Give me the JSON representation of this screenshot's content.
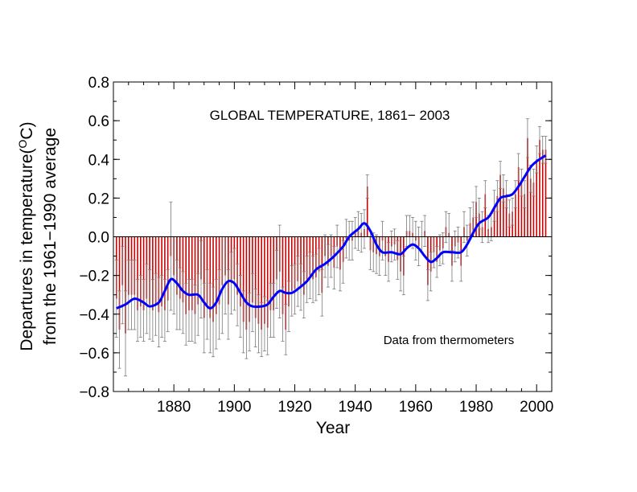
{
  "chart_data": {
    "type": "bar",
    "title": "GLOBAL TEMPERATURE, 1861− 2003",
    "xlabel": "Year",
    "ylabel_line1": "Departures in temperature(",
    "ylabel_sup": "O",
    "ylabel_unit": "C)",
    "ylabel_line2": "from the 1961−1990 average",
    "annotation": "Data from thermometers",
    "xlim": [
      1860,
      2005
    ],
    "ylim": [
      -0.8,
      0.8
    ],
    "x_ticks": [
      1880,
      1900,
      1920,
      1940,
      1960,
      1980,
      2000
    ],
    "y_ticks": [
      -0.8,
      -0.6,
      -0.4,
      -0.2,
      0.0,
      0.2,
      0.4,
      0.6,
      0.8
    ],
    "y_tick_labels": [
      "−0.8",
      "−0.6",
      "−0.4",
      "−0.2",
      "0.0",
      "0.2",
      "0.4",
      "0.6",
      "0.8"
    ],
    "bar_color": "#cc0000",
    "errorbar_color": "#7a7a7a",
    "smooth_color": "#0000ff",
    "grid": false,
    "start_year": 1861,
    "values": [
      -0.32,
      -0.48,
      -0.25,
      -0.5,
      -0.3,
      -0.3,
      -0.3,
      -0.38,
      -0.36,
      -0.38,
      -0.32,
      -0.35,
      -0.38,
      -0.35,
      -0.39,
      -0.36,
      -0.38,
      -0.33,
      -0.1,
      -0.2,
      -0.3,
      -0.32,
      -0.34,
      -0.4,
      -0.38,
      -0.38,
      -0.4,
      -0.35,
      -0.22,
      -0.42,
      -0.35,
      -0.42,
      -0.44,
      -0.4,
      -0.35,
      -0.25,
      -0.2,
      -0.35,
      -0.24,
      -0.22,
      -0.3,
      -0.36,
      -0.44,
      -0.48,
      -0.44,
      -0.34,
      -0.42,
      -0.45,
      -0.48,
      -0.45,
      -0.47,
      -0.38,
      -0.38,
      -0.22,
      -0.18,
      -0.4,
      -0.48,
      -0.36,
      -0.28,
      -0.27,
      -0.23,
      -0.26,
      -0.3,
      -0.22,
      -0.2,
      -0.22,
      -0.21,
      -0.18,
      -0.29,
      -0.1,
      -0.15,
      -0.1,
      -0.16,
      -0.05,
      -0.17,
      -0.13,
      -0.01,
      -0.02,
      -0.02,
      0.02,
      0.03,
      0.02,
      0.04,
      0.26,
      -0.07,
      -0.08,
      -0.09,
      -0.1,
      -0.02,
      -0.1,
      -0.13,
      -0.05,
      -0.04,
      -0.12,
      -0.18,
      -0.2,
      0.03,
      0.03,
      0.02,
      -0.02,
      -0.05,
      0.0,
      0.03,
      -0.25,
      -0.18,
      -0.08,
      -0.13,
      -0.07,
      -0.06,
      0.05,
      0.02,
      -0.15,
      -0.05,
      -0.03,
      -0.15,
      0.05,
      -0.02,
      0.07,
      0.1,
      0.18,
      0.12,
      0.05,
      0.22,
      0.04,
      0.05,
      0.16,
      0.21,
      0.32,
      0.25,
      0.22,
      0.12,
      0.13,
      0.22,
      0.36,
      0.28,
      0.22,
      0.51,
      0.3,
      0.28,
      0.4,
      0.5,
      0.45,
      0.45
    ],
    "errors": [
      0.2,
      0.2,
      0.2,
      0.22,
      0.18,
      0.18,
      0.18,
      0.16,
      0.16,
      0.16,
      0.18,
      0.18,
      0.16,
      0.16,
      0.18,
      0.16,
      0.16,
      0.16,
      0.28,
      0.2,
      0.18,
      0.16,
      0.16,
      0.16,
      0.16,
      0.16,
      0.15,
      0.16,
      0.2,
      0.18,
      0.18,
      0.18,
      0.18,
      0.18,
      0.18,
      0.25,
      0.2,
      0.18,
      0.16,
      0.16,
      0.16,
      0.16,
      0.16,
      0.15,
      0.15,
      0.15,
      0.15,
      0.15,
      0.14,
      0.14,
      0.14,
      0.14,
      0.14,
      0.15,
      0.24,
      0.14,
      0.13,
      0.13,
      0.13,
      0.13,
      0.13,
      0.12,
      0.12,
      0.12,
      0.12,
      0.12,
      0.12,
      0.12,
      0.12,
      0.11,
      0.11,
      0.11,
      0.11,
      0.11,
      0.11,
      0.11,
      0.1,
      0.1,
      0.1,
      0.08,
      0.1,
      0.1,
      0.1,
      0.06,
      0.1,
      0.1,
      0.1,
      0.1,
      0.1,
      0.1,
      0.1,
      0.08,
      0.08,
      0.1,
      0.1,
      0.1,
      0.08,
      0.08,
      0.08,
      0.1,
      0.1,
      0.08,
      0.08,
      0.08,
      0.1,
      0.08,
      0.08,
      0.08,
      0.08,
      0.08,
      0.1,
      0.08,
      0.08,
      0.08,
      0.08,
      0.08,
      0.08,
      0.08,
      0.08,
      0.08,
      0.08,
      0.08,
      0.07,
      0.07,
      0.07,
      0.08,
      0.08,
      0.07,
      0.07,
      0.07,
      0.07,
      0.07,
      0.07,
      0.07,
      0.07,
      0.07,
      0.1,
      0.07,
      0.07,
      0.07,
      0.07,
      0.07,
      0.07
    ],
    "smooth": [
      [
        1861,
        -0.37
      ],
      [
        1864,
        -0.35
      ],
      [
        1867,
        -0.32
      ],
      [
        1870,
        -0.34
      ],
      [
        1872,
        -0.36
      ],
      [
        1875,
        -0.34
      ],
      [
        1877,
        -0.28
      ],
      [
        1879,
        -0.22
      ],
      [
        1881,
        -0.24
      ],
      [
        1883,
        -0.28
      ],
      [
        1885,
        -0.3
      ],
      [
        1888,
        -0.3
      ],
      [
        1890,
        -0.34
      ],
      [
        1892,
        -0.37
      ],
      [
        1894,
        -0.34
      ],
      [
        1896,
        -0.27
      ],
      [
        1898,
        -0.23
      ],
      [
        1900,
        -0.24
      ],
      [
        1902,
        -0.29
      ],
      [
        1904,
        -0.34
      ],
      [
        1906,
        -0.36
      ],
      [
        1909,
        -0.36
      ],
      [
        1911,
        -0.35
      ],
      [
        1913,
        -0.31
      ],
      [
        1915,
        -0.28
      ],
      [
        1917,
        -0.29
      ],
      [
        1919,
        -0.29
      ],
      [
        1921,
        -0.27
      ],
      [
        1924,
        -0.23
      ],
      [
        1927,
        -0.17
      ],
      [
        1930,
        -0.14
      ],
      [
        1933,
        -0.1
      ],
      [
        1936,
        -0.05
      ],
      [
        1938,
        0.0
      ],
      [
        1941,
        0.04
      ],
      [
        1943,
        0.07
      ],
      [
        1945,
        0.03
      ],
      [
        1947,
        -0.04
      ],
      [
        1949,
        -0.08
      ],
      [
        1952,
        -0.08
      ],
      [
        1955,
        -0.09
      ],
      [
        1957,
        -0.06
      ],
      [
        1959,
        -0.04
      ],
      [
        1961,
        -0.06
      ],
      [
        1963,
        -0.1
      ],
      [
        1965,
        -0.13
      ],
      [
        1967,
        -0.11
      ],
      [
        1969,
        -0.08
      ],
      [
        1972,
        -0.08
      ],
      [
        1975,
        -0.08
      ],
      [
        1977,
        -0.04
      ],
      [
        1979,
        0.02
      ],
      [
        1981,
        0.07
      ],
      [
        1984,
        0.1
      ],
      [
        1986,
        0.15
      ],
      [
        1988,
        0.2
      ],
      [
        1990,
        0.21
      ],
      [
        1992,
        0.22
      ],
      [
        1994,
        0.26
      ],
      [
        1996,
        0.31
      ],
      [
        1998,
        0.36
      ],
      [
        2000,
        0.39
      ],
      [
        2003,
        0.42
      ]
    ]
  }
}
